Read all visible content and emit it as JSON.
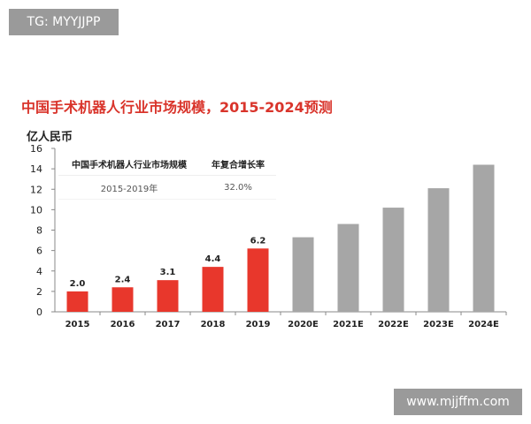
{
  "tag": "TG: MYYJJPP",
  "watermark": "www.mjjffm.com",
  "chart_data": {
    "type": "bar",
    "title": "中国手术机器人行业市场规模，2015-2024预测",
    "ylabel": "亿人民币",
    "categories": [
      "2015",
      "2016",
      "2017",
      "2018",
      "2019",
      "2020E",
      "2021E",
      "2022E",
      "2023E",
      "2024E"
    ],
    "values": [
      2.0,
      2.4,
      3.1,
      4.4,
      6.2,
      7.3,
      8.6,
      10.2,
      12.1,
      14.4
    ],
    "data_labels": [
      "2.0",
      "2.4",
      "3.1",
      "4.4",
      "6.2",
      "",
      "",
      "",
      "",
      ""
    ],
    "colors": [
      "#e8372c",
      "#e8372c",
      "#e8372c",
      "#e8372c",
      "#e8372c",
      "#a6a6a6",
      "#a6a6a6",
      "#a6a6a6",
      "#a6a6a6",
      "#a6a6a6"
    ],
    "ylim": [
      0,
      16
    ],
    "yticks": [
      "0",
      "2",
      "4",
      "6",
      "8",
      "10",
      "12",
      "14",
      "16"
    ],
    "grid": false,
    "inset_table": {
      "headers": [
        "中国手术机器人行业市场规模",
        "年复合增长率"
      ],
      "rows": [
        [
          "2015-2019年",
          "32.0%"
        ]
      ]
    }
  }
}
